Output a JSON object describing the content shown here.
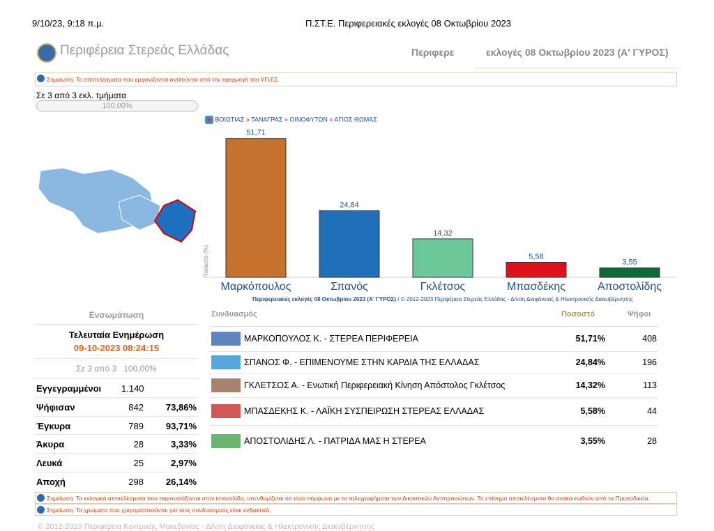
{
  "print_header": {
    "datetime": "9/10/23, 9:18 π.μ.",
    "title": "Π.ΣΤ.Ε. Περιφερειακές εκλογές 08 Οκτωβρίου 2023"
  },
  "header": {
    "site_title": "Περιφέρεια Στερεάς Ελλάδας",
    "nav": "Περιφερε",
    "election": "εκλογές 08 Οκτωβρίου 2023 (Α' ΓΥΡΟΣ)"
  },
  "notice_top": "Σημείωση: Τα αποτελέσματα που εμφανίζονται αντλούνται από την εφαρμογή του ΥΠ.ΕΣ.",
  "progress": {
    "text": "Σε 3 από 3 εκλ. τμήματα",
    "label": "100,00%"
  },
  "breadcrumb": {
    "separator": "»",
    "items": [
      "ΒΟΙΩΤΙΑΣ",
      "ΤΑΝΑΓΡΑΣ",
      "ΟΙΝΟΦΥΤΩΝ",
      "ΑΓΙΟΣ ΘΩΜΑΣ"
    ]
  },
  "chart_data": {
    "type": "bar",
    "ylabel": "Ποσοστό (%)",
    "caption_bold": "Περιφερειακές εκλογές 08 Οκτωβρίου 2023 (Α' ΓΥΡΟΣ)",
    "caption": " / © 2012-2023 Περιφέρεια Στερεάς Ελλάδας - Δ/νση Διαφάνειας & Ηλεκτρονικής Διακυβέρνησης",
    "categories": [
      "Μαρκόπουλος",
      "Σπανός",
      "Γκλέτσος",
      "Μπασδέκης",
      "Αποστολίδης"
    ],
    "values": [
      51.71,
      24.84,
      14.32,
      5.58,
      3.55
    ],
    "value_labels": [
      "51,71",
      "24,84",
      "14,32",
      "5,58",
      "3,55"
    ],
    "colors": [
      "#c5722f",
      "#1f70b9",
      "#6cc89b",
      "#e1111b",
      "#0c6b34"
    ],
    "ylim": [
      0,
      55
    ]
  },
  "summary": {
    "title": "Ενσωμάτωση",
    "update_label": "Τελευταία Ενημέρωση",
    "update_time": "09-10-2023 08:24:15",
    "sections": "Σε 3 από 3",
    "sections_pct": "100,00%",
    "rows": [
      [
        "Εγγεγραμμένοι",
        "1.140",
        ""
      ],
      [
        "Ψήφισαν",
        "842",
        "73,86%"
      ],
      [
        "Έγκυρα",
        "789",
        "93,71%"
      ],
      [
        "Άκυρα",
        "28",
        "3,33%"
      ],
      [
        "Λευκά",
        "25",
        "2,97%"
      ],
      [
        "Αποχή",
        "298",
        "26,14%"
      ]
    ]
  },
  "results": {
    "headers": [
      "Συνδυασμός",
      "Ποσοστό",
      "Ψήφοι"
    ],
    "rows": [
      [
        "ΜΑΡΚΟΠΟΥΛΟΣ Κ. - ΣΤΕΡΕΑ ΠΕΡΙΦΕΡΕΙΑ",
        "51,71%",
        "408"
      ],
      [
        "ΣΠΑΝΟΣ Φ. - ΕΠΙΜΕΝΟΥΜΕ ΣΤΗΝ ΚΑΡΔΙΑ ΤΗΣ ΕΛΛΑΔΑΣ",
        "24,84%",
        "196"
      ],
      [
        "ΓΚΛΕΤΣΟΣ Α. - Ενωτική Περιφερειακή Κίνηση Απόστολος Γκλέτσος",
        "14,32%",
        "113"
      ],
      [
        "ΜΠΑΣΔΕΚΗΣ Κ. - ΛΑΪΚΗ ΣΥΣΠΕΙΡΩΣΗ ΣΤΕΡΕΑΣ ΕΛΛΑΔΑΣ",
        "5,58%",
        "44"
      ],
      [
        "ΑΠΟΣΤΟΛΙΔΗΣ Λ. - ΠΑΤΡΙΔΑ ΜΑΣ Η ΣΤΕΡΕΑ",
        "3,55%",
        "28"
      ]
    ]
  },
  "notes": [
    "Σημείωση: Τα εκλογικά αποτελέσματα που παρουσιάζονται στην ιστοσελίδα, υπενθυμίζεται ότι είναι σύμφωνα με τα τηλεγραφήματα των Δικαστικών Αντιπροσώπων. Τα επίσημα αποτελέσματα θα ανακοινωθούν από τα Πρωτοδικεία.",
    "Σημείωση: Τα χρώματα που χρησιμοποιούνται για τους συνδυασμούς είναι ενδεικτικά."
  ],
  "footer": "© 2012-2023 Περιφέρεια Κεντρικής Μακεδονίας - Δ/νση Διαφάνειας & Ηλεκτρονικής Διακυβέρνησης"
}
